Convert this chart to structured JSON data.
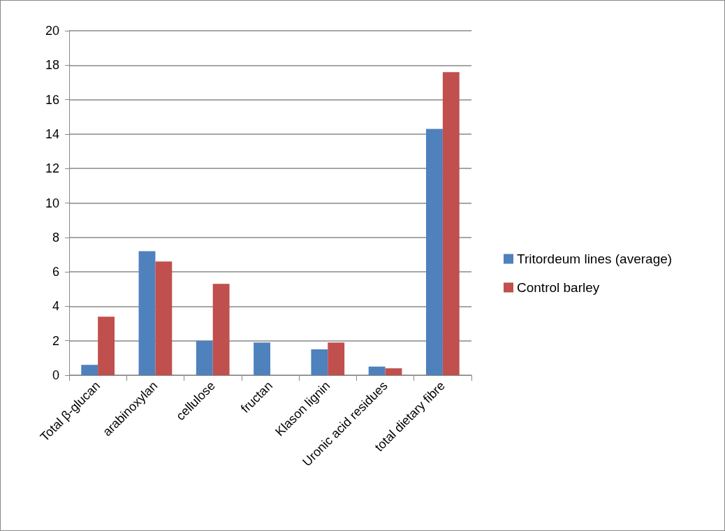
{
  "chart_data": {
    "type": "bar",
    "categories": [
      "Total β-glucan",
      "arabinoxylan",
      "cellulose",
      "fructan",
      "Klason lignin",
      "Uronic acid residues",
      "total dietary fibre"
    ],
    "series": [
      {
        "name": "Tritordeum lines (average)",
        "color": "#4f81bd",
        "values": [
          0.6,
          7.2,
          2.0,
          1.9,
          1.5,
          0.5,
          14.3
        ]
      },
      {
        "name": "Control barley",
        "color": "#c0504d",
        "values": [
          3.4,
          6.6,
          5.3,
          null,
          1.9,
          0.4,
          17.6
        ]
      }
    ],
    "ylim": [
      0,
      20
    ],
    "yticks": [
      0,
      2,
      4,
      6,
      8,
      10,
      12,
      14,
      16,
      18,
      20
    ],
    "grid": "y",
    "legend": "right"
  }
}
